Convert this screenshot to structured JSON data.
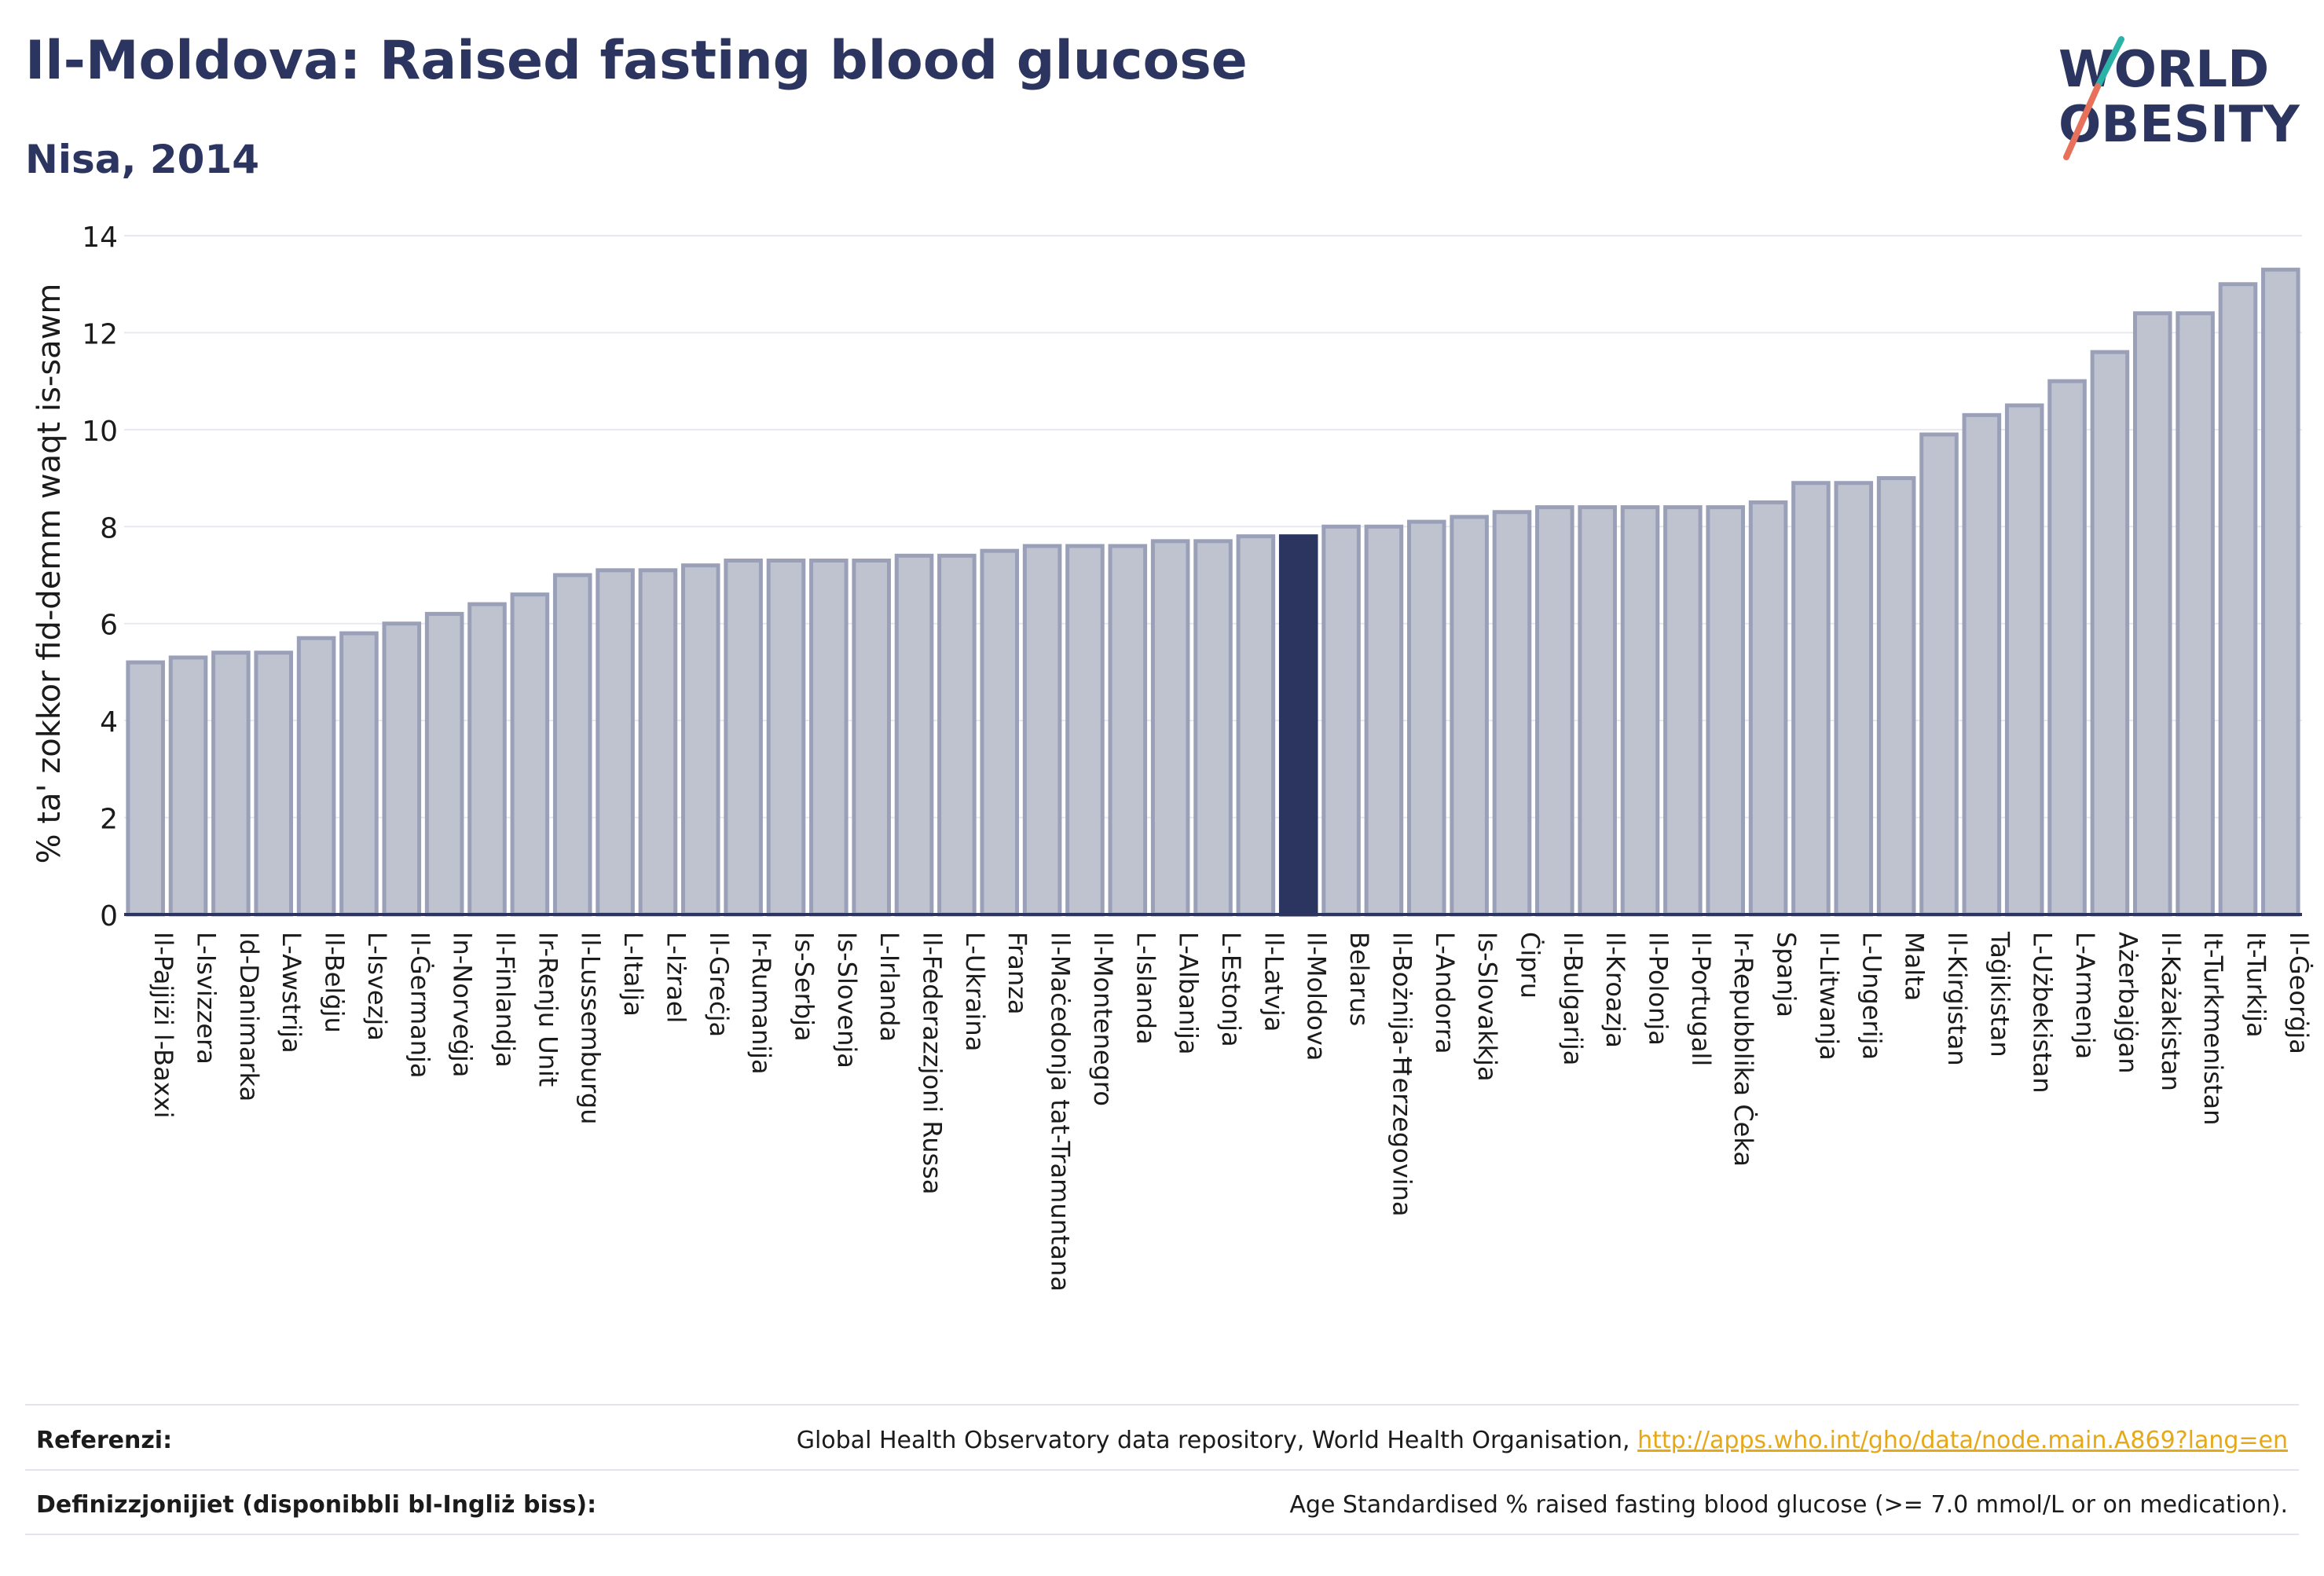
{
  "header": {
    "title": "Il-Moldova: Raised fasting blood glucose",
    "subtitle": "Nisa, 2014"
  },
  "logo": {
    "line1": "WORLD",
    "line2": "OBESITY",
    "accent_teal": "#2bb3a8",
    "accent_coral": "#e8715c"
  },
  "colors": {
    "bar": "#bfc3d0",
    "bar_stroke": "#9aa0b8",
    "highlight": "#2b3560",
    "axis": "#2b3560",
    "grid": "#e8e9ef"
  },
  "chart_data": {
    "type": "bar",
    "ylabel": "% ta' zokkor fid-demm waqt is-sawm",
    "ylim": [
      0,
      14
    ],
    "yticks": [
      0,
      2,
      4,
      6,
      8,
      10,
      12,
      14
    ],
    "grid": true,
    "highlight": "Il-Moldova",
    "categories": [
      "Il-Pajjiżi l-Baxxi",
      "L-Isvizzera",
      "Id-Danimarka",
      "L-Awstrija",
      "Il-Belġju",
      "L-Isvezja",
      "Il-Ġermanja",
      "In-Norveġja",
      "Il-Finlandja",
      "Ir-Renju Unit",
      "Il-Lussemburgu",
      "L-Italja",
      "L-Iżrael",
      "Il-Greċja",
      "Ir-Rumanija",
      "Is-Serbja",
      "Is-Slovenja",
      "L-Irlanda",
      "Il-Federazzjoni Russa",
      "L-Ukraina",
      "Franza",
      "Il-Maċedonja tat-Tramuntana",
      "Il-Montenegro",
      "L-Islanda",
      "L-Albanija",
      "L-Estonja",
      "Il-Latvja",
      "Il-Moldova",
      "Belarus",
      "Il-Bożnija-Ħerzegovina",
      "L-Andorra",
      "Is-Slovakkja",
      "Ċipru",
      "Il-Bulgarija",
      "Il-Kroazja",
      "Il-Polonja",
      "Il-Portugall",
      "Ir-Repubblika Ċeka",
      "Spanja",
      "Il-Litwanja",
      "L-Ungerija",
      "Malta",
      "Il-Kirgistan",
      "Taġikistan",
      "L-Użbekistan",
      "L-Armenja",
      "Ażerbajġan",
      "Il-Każakistan",
      "It-Turkmenistan",
      "It-Turkija",
      "Il-Ġeorġja"
    ],
    "values": [
      5.2,
      5.3,
      5.4,
      5.4,
      5.7,
      5.8,
      6.0,
      6.2,
      6.4,
      6.6,
      7.0,
      7.1,
      7.1,
      7.2,
      7.3,
      7.3,
      7.3,
      7.3,
      7.4,
      7.4,
      7.5,
      7.6,
      7.6,
      7.6,
      7.7,
      7.7,
      7.8,
      7.8,
      8.0,
      8.0,
      8.1,
      8.2,
      8.3,
      8.4,
      8.4,
      8.4,
      8.4,
      8.4,
      8.5,
      8.9,
      8.9,
      9.0,
      9.9,
      10.3,
      10.5,
      11.0,
      11.6,
      12.4,
      12.4,
      13.0,
      13.3
    ]
  },
  "footer": {
    "references_label": "Referenzi:",
    "references_text": "Global Health Observatory data repository, World Health Organisation,",
    "references_link": "http://apps.who.int/gho/data/node.main.A869?lang=en",
    "definitions_label": "Definizzjonijiet (disponibbli bl-Ingliż biss):",
    "definitions_text": "Age Standardised % raised fasting blood glucose (>= 7.0 mmol/L or on medication)."
  }
}
